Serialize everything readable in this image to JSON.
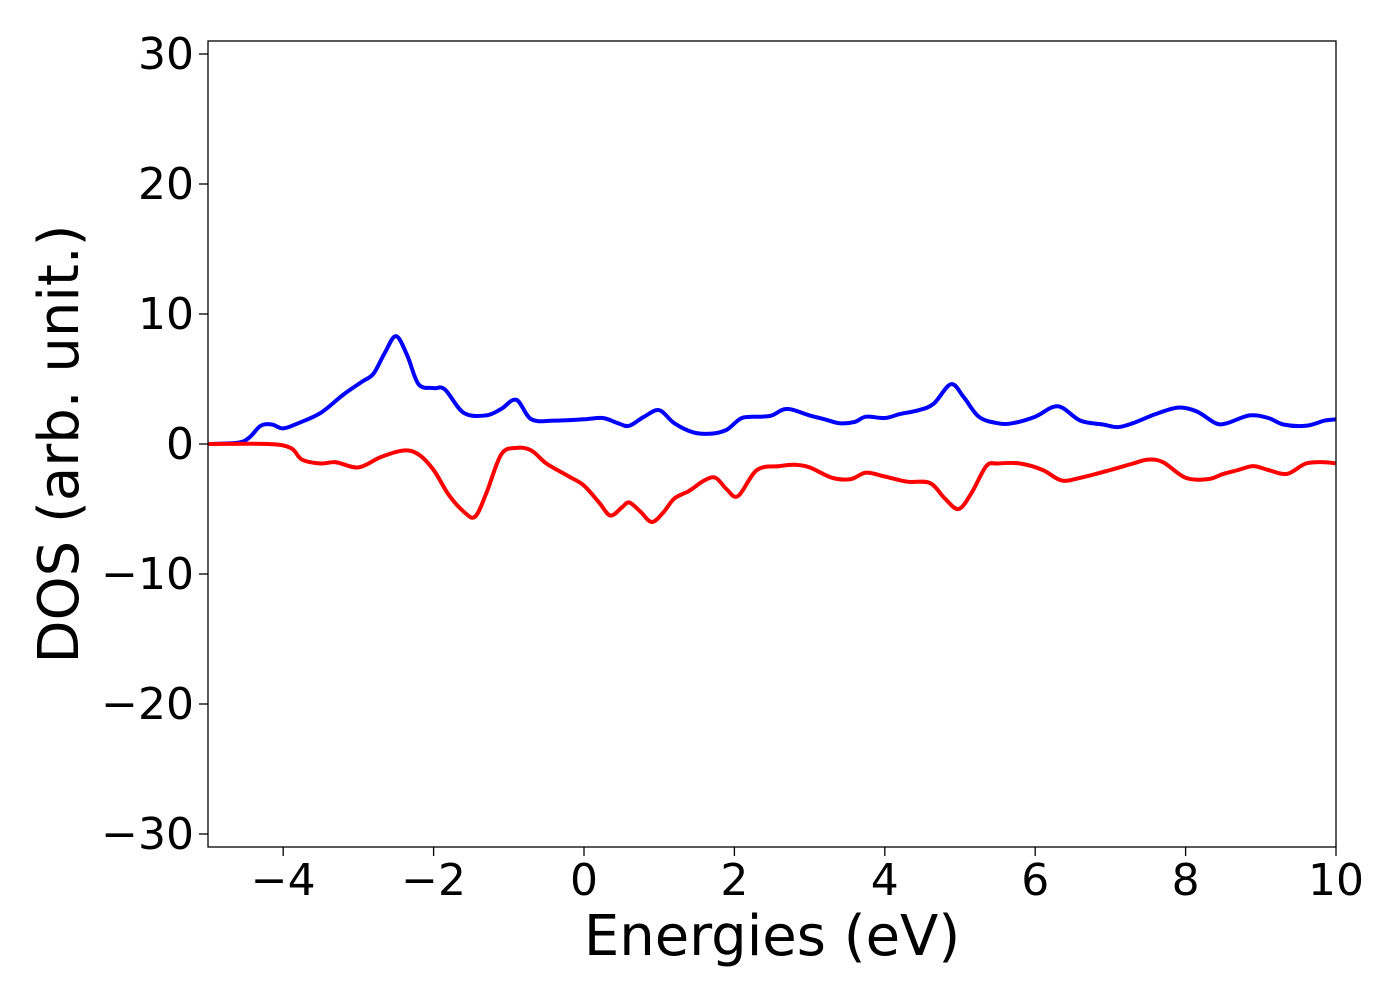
{
  "chart_data": {
    "type": "line",
    "xlabel": "Energies (eV)",
    "ylabel": "DOS (arb. unit.)",
    "xlim": [
      -5,
      10
    ],
    "ylim": [
      -31,
      31
    ],
    "xticks": [
      -4,
      -2,
      0,
      2,
      4,
      6,
      8,
      10
    ],
    "xtick_labels": [
      "−4",
      "−2",
      "0",
      "2",
      "4",
      "6",
      "8",
      "10"
    ],
    "yticks": [
      30,
      20,
      10,
      0,
      -10,
      -20,
      -30
    ],
    "ytick_labels": [
      "30",
      "20",
      "10",
      "0",
      "−10",
      "−20",
      "−30"
    ],
    "grid": false,
    "legend": "none",
    "series": [
      {
        "color": "#0000ff",
        "x": [
          -5.0,
          -4.6,
          -4.45,
          -4.3,
          -4.15,
          -4.0,
          -3.8,
          -3.5,
          -3.2,
          -2.95,
          -2.8,
          -2.65,
          -2.5,
          -2.35,
          -2.2,
          -2.0,
          -1.85,
          -1.6,
          -1.3,
          -1.1,
          -0.9,
          -0.7,
          -0.4,
          0.0,
          0.25,
          0.45,
          0.6,
          0.8,
          1.0,
          1.2,
          1.45,
          1.7,
          1.9,
          2.1,
          2.35,
          2.5,
          2.7,
          3.0,
          3.2,
          3.4,
          3.6,
          3.75,
          4.0,
          4.2,
          4.45,
          4.65,
          4.88,
          5.05,
          5.25,
          5.5,
          5.7,
          6.0,
          6.3,
          6.6,
          6.9,
          7.1,
          7.3,
          7.6,
          7.9,
          8.15,
          8.4,
          8.55,
          8.85,
          9.1,
          9.3,
          9.6,
          9.85,
          10.0
        ],
        "y": [
          0,
          0.1,
          0.5,
          1.4,
          1.5,
          1.2,
          1.6,
          2.4,
          3.8,
          4.8,
          5.4,
          7.0,
          8.3,
          6.8,
          4.6,
          4.3,
          4.2,
          2.4,
          2.2,
          2.7,
          3.4,
          1.9,
          1.8,
          1.9,
          2.0,
          1.6,
          1.4,
          2.1,
          2.6,
          1.6,
          0.9,
          0.8,
          1.1,
          2.0,
          2.1,
          2.2,
          2.7,
          2.2,
          1.9,
          1.6,
          1.7,
          2.1,
          2.0,
          2.3,
          2.6,
          3.1,
          4.6,
          3.6,
          2.1,
          1.6,
          1.6,
          2.1,
          2.9,
          1.8,
          1.5,
          1.3,
          1.6,
          2.3,
          2.8,
          2.5,
          1.6,
          1.6,
          2.2,
          2.0,
          1.5,
          1.4,
          1.8,
          1.9
        ]
      },
      {
        "color": "#ff0000",
        "x": [
          -5.0,
          -4.2,
          -3.9,
          -3.75,
          -3.5,
          -3.3,
          -3.0,
          -2.7,
          -2.4,
          -2.2,
          -2.0,
          -1.8,
          -1.6,
          -1.45,
          -1.3,
          -1.1,
          -0.9,
          -0.7,
          -0.5,
          -0.2,
          0.0,
          0.2,
          0.35,
          0.5,
          0.6,
          0.75,
          0.9,
          1.05,
          1.2,
          1.4,
          1.6,
          1.75,
          1.9,
          2.05,
          2.3,
          2.6,
          2.8,
          3.0,
          3.3,
          3.55,
          3.75,
          4.0,
          4.3,
          4.6,
          4.8,
          4.98,
          5.15,
          5.35,
          5.5,
          5.8,
          6.1,
          6.35,
          6.6,
          7.0,
          7.3,
          7.5,
          7.7,
          8.0,
          8.3,
          8.5,
          8.7,
          8.9,
          9.1,
          9.35,
          9.6,
          9.85,
          10.0
        ],
        "y": [
          0,
          0,
          -0.3,
          -1.2,
          -1.5,
          -1.4,
          -1.8,
          -1.0,
          -0.5,
          -0.8,
          -2.0,
          -3.9,
          -5.2,
          -5.6,
          -3.8,
          -0.8,
          -0.3,
          -0.5,
          -1.5,
          -2.5,
          -3.2,
          -4.5,
          -5.5,
          -4.9,
          -4.5,
          -5.2,
          -6.0,
          -5.3,
          -4.2,
          -3.6,
          -2.8,
          -2.6,
          -3.5,
          -4.0,
          -2.0,
          -1.7,
          -1.6,
          -1.8,
          -2.6,
          -2.7,
          -2.2,
          -2.5,
          -2.9,
          -3.0,
          -4.2,
          -5.0,
          -3.8,
          -1.7,
          -1.5,
          -1.5,
          -2.0,
          -2.8,
          -2.6,
          -2.0,
          -1.5,
          -1.2,
          -1.4,
          -2.6,
          -2.7,
          -2.3,
          -2.0,
          -1.7,
          -2.0,
          -2.3,
          -1.5,
          -1.4,
          -1.5
        ]
      }
    ]
  }
}
